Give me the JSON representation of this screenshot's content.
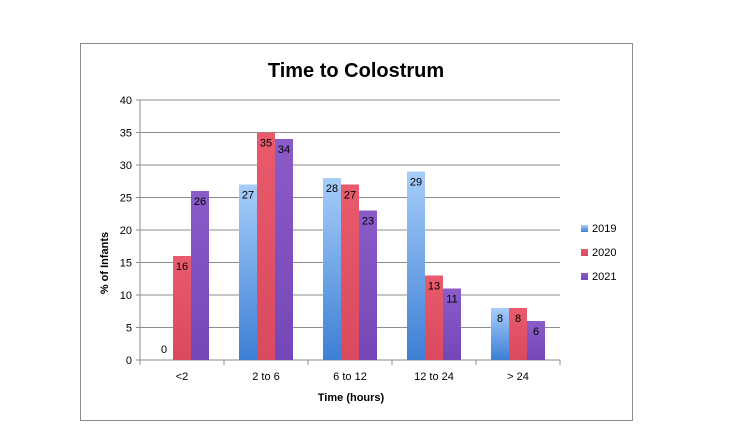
{
  "chart_data": {
    "type": "bar",
    "title": "Time to Colostrum",
    "xlabel": "Time (hours)",
    "ylabel": "% of Infants",
    "categories": [
      "<2",
      "2 to 6",
      "6 to 12",
      "12 to 24",
      "> 24"
    ],
    "series": [
      {
        "name": "2019",
        "values": [
          0,
          27,
          28,
          29,
          8
        ],
        "color": "#7fb2f0"
      },
      {
        "name": "2020",
        "values": [
          16,
          35,
          27,
          13,
          8
        ],
        "color": "#e05568"
      },
      {
        "name": "2021",
        "values": [
          26,
          34,
          23,
          11,
          6
        ],
        "color": "#7f52c3"
      }
    ],
    "ylim": [
      0,
      40
    ],
    "yticks": [
      0,
      5,
      10,
      15,
      20,
      25,
      30,
      35,
      40
    ],
    "grid": true,
    "legend": "right"
  }
}
